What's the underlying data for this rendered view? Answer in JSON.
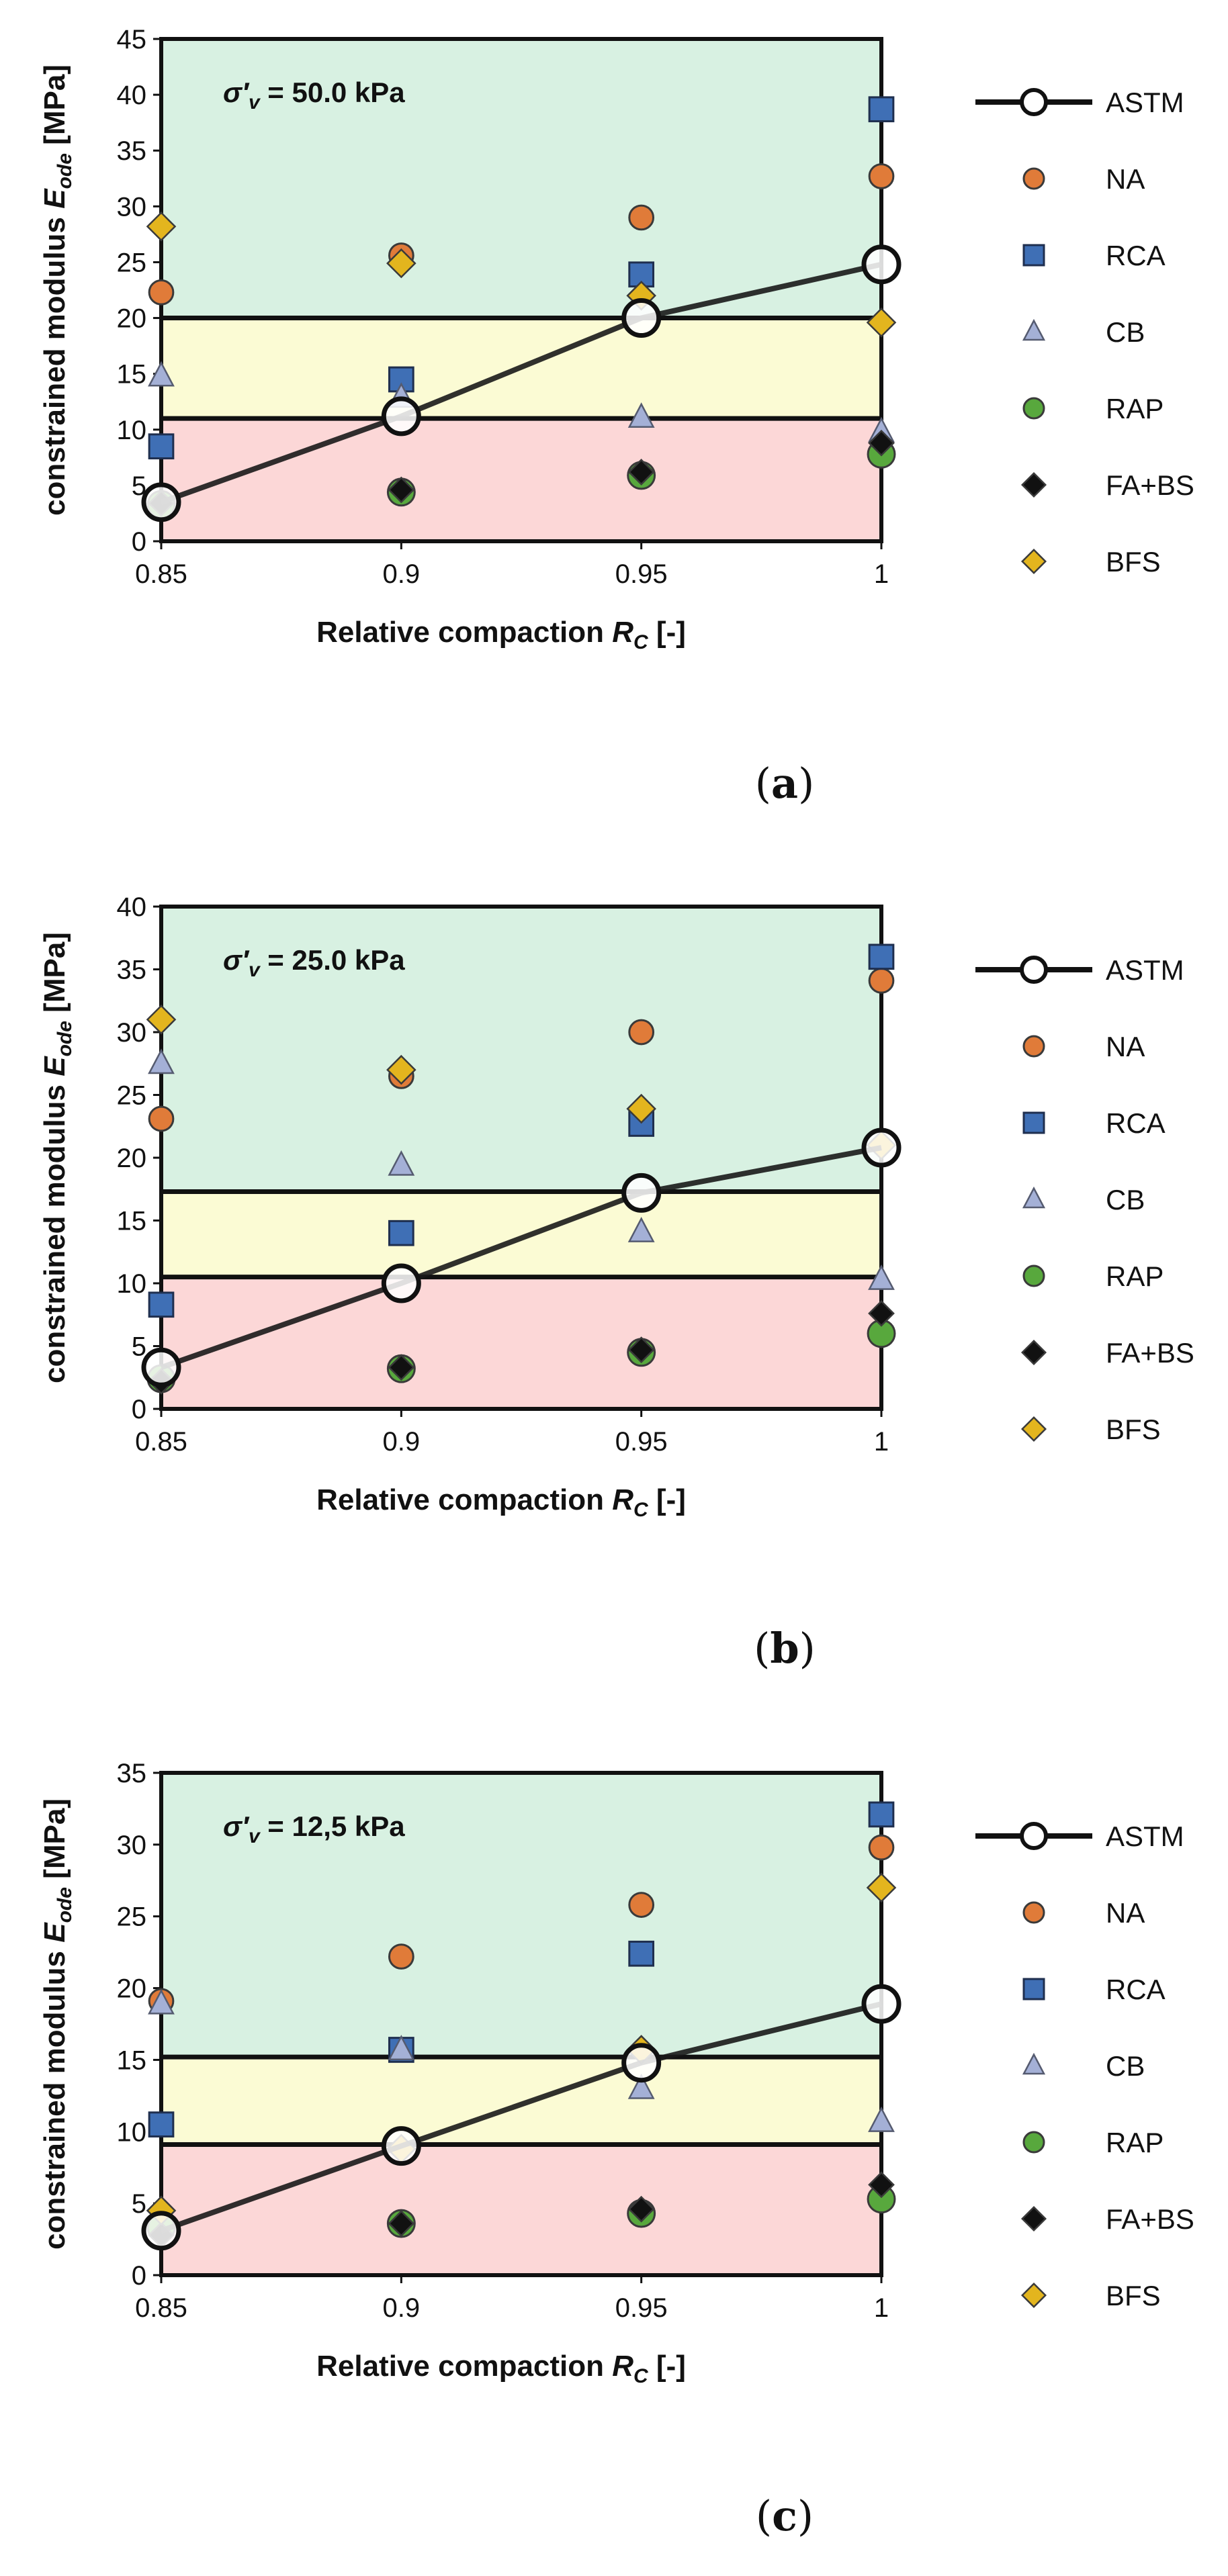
{
  "figure": {
    "colors": {
      "zone_high": "#d8f1e2",
      "zone_mid": "#fbfbd4",
      "zone_low": "#fcd7d7",
      "astm_line": "#1a1a1a",
      "NA": "#e07b39",
      "RCA": "#3f6fb5",
      "CB": "#a4b0d6",
      "RAP": "#58a83d",
      "FA+BS": "#111111",
      "BFS": "#e3b51e"
    },
    "legend": [
      {
        "name": "ASTM",
        "marker": "circle-open-line"
      },
      {
        "name": "NA",
        "marker": "circle"
      },
      {
        "name": "RCA",
        "marker": "square"
      },
      {
        "name": "CB",
        "marker": "triangle"
      },
      {
        "name": "RAP",
        "marker": "circle"
      },
      {
        "name": "FA+BS",
        "marker": "diamond"
      },
      {
        "name": "BFS",
        "marker": "diamond"
      }
    ]
  },
  "chart_data": [
    {
      "type": "scatter",
      "panel_label_main": "a",
      "stress_symbol": "σ′",
      "stress_subscript": "v",
      "stress_value": " = 50.0 kPa",
      "ylabel_main": "constrained modulus ",
      "ylabel_symbol": "E",
      "ylabel_subscript": "ode",
      "ylabel_unit": " [MPa]",
      "xlabel_main": "Relative compaction ",
      "xlabel_symbol": "R",
      "xlabel_subscript": "C",
      "xlabel_unit": " [-]",
      "xlim": [
        0.85,
        1.0
      ],
      "ylim": [
        0,
        45
      ],
      "xticks": [
        0.85,
        0.9,
        0.95,
        1.0
      ],
      "xtick_labels": [
        "0.85",
        "0.9",
        "0.95",
        "1"
      ],
      "yticks": [
        0,
        5,
        10,
        15,
        20,
        25,
        30,
        35,
        40,
        45
      ],
      "ytick_labels": [
        "0",
        "5",
        "10",
        "15",
        "20",
        "25",
        "30",
        "35",
        "40",
        "45"
      ],
      "zone_thresholds": [
        11,
        20
      ],
      "x": [
        0.85,
        0.9,
        0.95,
        1.0
      ],
      "series": [
        {
          "name": "ASTM",
          "values": [
            3.5,
            11.2,
            20.0,
            24.8
          ]
        },
        {
          "name": "NA",
          "values": [
            22.3,
            25.6,
            29.0,
            32.7
          ]
        },
        {
          "name": "RCA",
          "values": [
            8.5,
            14.5,
            23.9,
            38.7
          ]
        },
        {
          "name": "CB",
          "values": [
            14.8,
            12.9,
            11.1,
            9.8
          ]
        },
        {
          "name": "RAP",
          "values": [
            3.3,
            4.4,
            5.9,
            7.8
          ]
        },
        {
          "name": "FA+BS",
          "values": [
            3.4,
            4.6,
            6.2,
            8.8
          ]
        },
        {
          "name": "BFS",
          "values": [
            28.2,
            24.9,
            22.0,
            19.6
          ]
        }
      ]
    },
    {
      "type": "scatter",
      "panel_label_main": "b",
      "stress_symbol": "σ′",
      "stress_subscript": "v",
      "stress_value": " = 25.0 kPa",
      "ylabel_main": "constrained modulus ",
      "ylabel_symbol": "E",
      "ylabel_subscript": "ode",
      "ylabel_unit": " [MPa]",
      "xlabel_main": "Relative compaction ",
      "xlabel_symbol": "R",
      "xlabel_subscript": "C",
      "xlabel_unit": " [-]",
      "xlim": [
        0.85,
        1.0
      ],
      "ylim": [
        0,
        40
      ],
      "xticks": [
        0.85,
        0.9,
        0.95,
        1.0
      ],
      "xtick_labels": [
        "0.85",
        "0.9",
        "0.95",
        "1"
      ],
      "yticks": [
        0,
        5,
        10,
        15,
        20,
        25,
        30,
        35,
        40
      ],
      "ytick_labels": [
        "0",
        "5",
        "10",
        "15",
        "20",
        "25",
        "30",
        "35",
        "40"
      ],
      "zone_thresholds": [
        10.5,
        17.3
      ],
      "x": [
        0.85,
        0.9,
        0.95,
        1.0
      ],
      "series": [
        {
          "name": "ASTM",
          "values": [
            3.3,
            10.0,
            17.2,
            20.8
          ]
        },
        {
          "name": "NA",
          "values": [
            23.1,
            26.5,
            30.0,
            34.1
          ]
        },
        {
          "name": "RCA",
          "values": [
            8.3,
            14.0,
            22.7,
            36.0
          ]
        },
        {
          "name": "CB",
          "values": [
            27.5,
            19.4,
            14.1,
            10.3
          ]
        },
        {
          "name": "RAP",
          "values": [
            2.4,
            3.2,
            4.5,
            6.0
          ]
        },
        {
          "name": "FA+BS",
          "values": [
            2.2,
            3.3,
            4.7,
            7.6
          ]
        },
        {
          "name": "BFS",
          "values": [
            31.0,
            27.0,
            23.9,
            21.0
          ]
        }
      ]
    },
    {
      "type": "scatter",
      "panel_label_main": "c",
      "stress_symbol": "σ′",
      "stress_subscript": "v",
      "stress_value": " = 12,5 kPa",
      "ylabel_main": "constrained modulus ",
      "ylabel_symbol": "E",
      "ylabel_subscript": "ode",
      "ylabel_unit": " [MPa]",
      "xlabel_main": "Relative compaction ",
      "xlabel_symbol": "R",
      "xlabel_subscript": "C",
      "xlabel_unit": " [-]",
      "xlim": [
        0.85,
        1.0
      ],
      "ylim": [
        0,
        35
      ],
      "xticks": [
        0.85,
        0.9,
        0.95,
        1.0
      ],
      "xtick_labels": [
        "0.85",
        "0.9",
        "0.95",
        "1"
      ],
      "yticks": [
        0,
        5,
        10,
        15,
        20,
        25,
        30,
        35
      ],
      "ytick_labels": [
        "0",
        "5",
        "10",
        "15",
        "20",
        "25",
        "30",
        "35"
      ],
      "zone_thresholds": [
        9.1,
        15.2
      ],
      "x": [
        0.85,
        0.9,
        0.95,
        1.0
      ],
      "series": [
        {
          "name": "ASTM",
          "values": [
            3.1,
            9.0,
            14.8,
            18.9
          ]
        },
        {
          "name": "NA",
          "values": [
            19.1,
            22.2,
            25.8,
            29.8
          ]
        },
        {
          "name": "RCA",
          "values": [
            10.5,
            15.7,
            22.4,
            32.1
          ]
        },
        {
          "name": "CB",
          "values": [
            18.9,
            15.7,
            13.0,
            10.7
          ]
        },
        {
          "name": "RAP",
          "values": [
            3.3,
            3.6,
            4.3,
            5.3
          ]
        },
        {
          "name": "FA+BS",
          "values": [
            2.8,
            3.6,
            4.6,
            6.3
          ]
        },
        {
          "name": "BFS",
          "values": [
            4.5,
            8.8,
            15.7,
            27.0
          ]
        }
      ]
    }
  ]
}
